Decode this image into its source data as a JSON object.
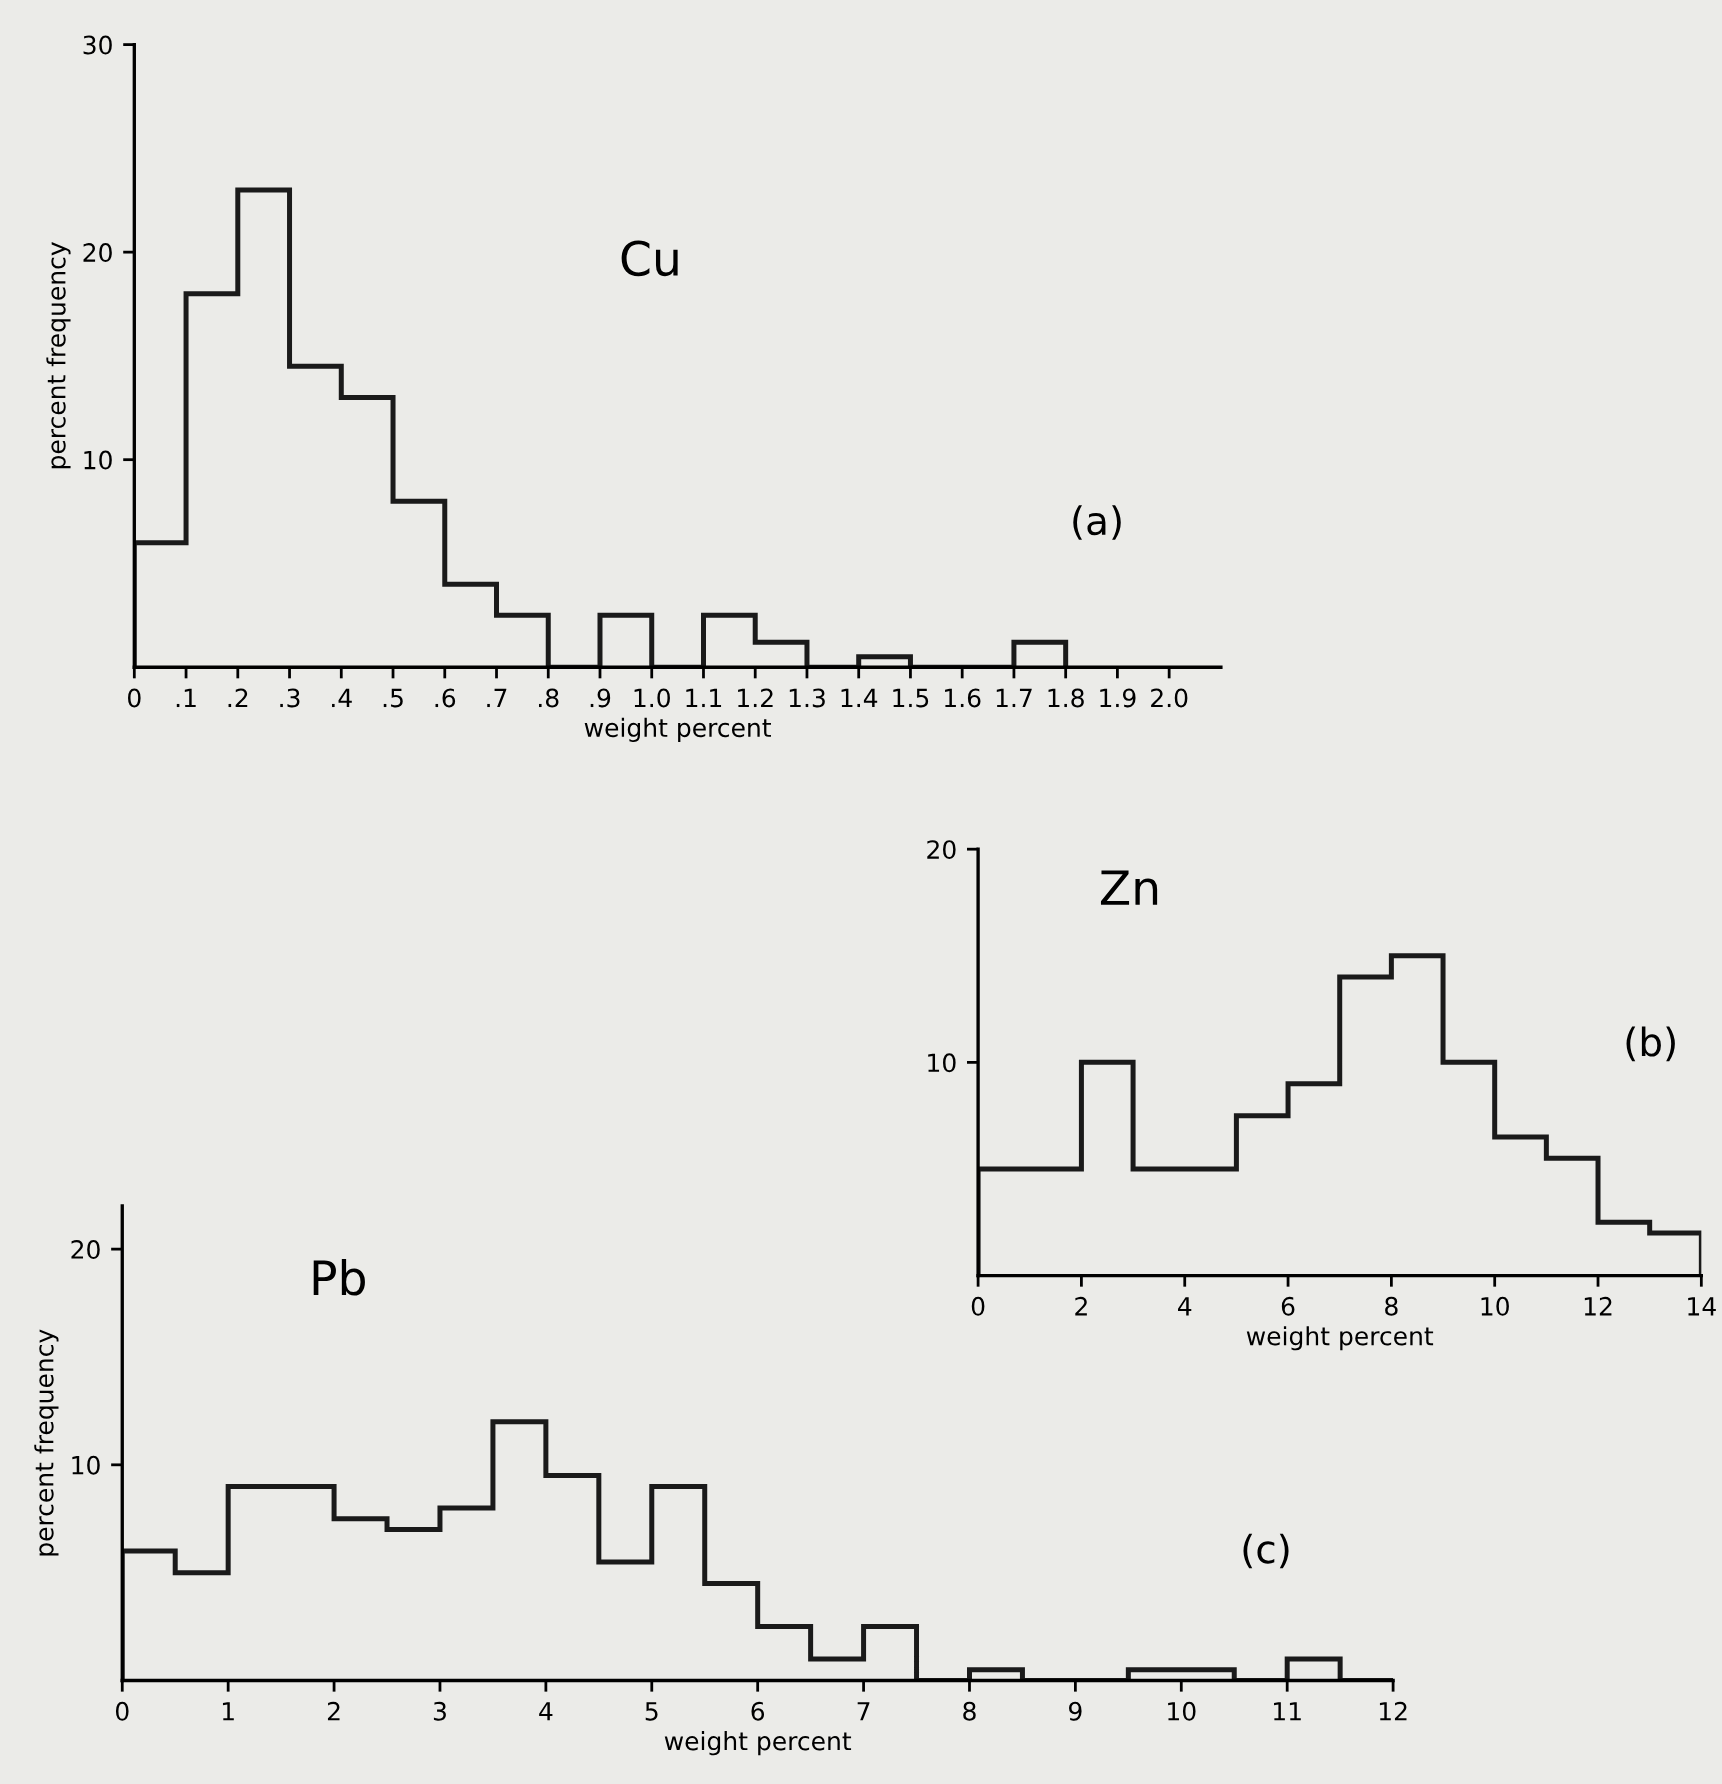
{
  "chart_data": [
    {
      "type": "histogram",
      "title": "Cu",
      "xlabel": "weight percent",
      "ylabel": "percent frequency",
      "annotations": [
        "(a)"
      ],
      "bins": [
        0,
        0.1,
        0.2,
        0.3,
        0.4,
        0.5,
        0.6,
        0.7,
        0.8,
        0.9,
        1.0,
        1.1,
        1.2,
        1.3,
        1.4,
        1.5,
        1.6,
        1.7,
        1.8
      ],
      "values": [
        6,
        18,
        23,
        14.5,
        13,
        8,
        4,
        2.5,
        0,
        2.5,
        0,
        2.5,
        1.2,
        0,
        0.5,
        0,
        0,
        1.2
      ],
      "color": "#1a1a1a",
      "xlim": [
        0,
        2.1
      ],
      "ylim": [
        0,
        30
      ],
      "xticks": [
        0,
        {
          "value": 0.1,
          "label": ".1"
        },
        {
          "value": 0.2,
          "label": ".2"
        },
        {
          "value": 0.3,
          "label": ".3"
        },
        {
          "value": 0.4,
          "label": ".4"
        },
        {
          "value": 0.5,
          "label": ".5"
        },
        {
          "value": 0.6,
          "label": ".6"
        },
        {
          "value": 0.7,
          "label": ".7"
        },
        {
          "value": 0.8,
          "label": ".8"
        },
        {
          "value": 0.9,
          "label": ".9"
        },
        {
          "value": 1.0,
          "label": "1.0"
        },
        1.1,
        1.2,
        1.3,
        1.4,
        1.5,
        1.6,
        1.7,
        1.8,
        1.9,
        {
          "value": 2.0,
          "label": "2.0"
        }
      ],
      "yticks": [
        10,
        20,
        30
      ],
      "grid": false
    },
    {
      "type": "histogram",
      "title": "Zn",
      "xlabel": "weight percent",
      "annotations": [
        "(b)"
      ],
      "bins": [
        0,
        1,
        2,
        3,
        4,
        5,
        6,
        7,
        8,
        9,
        10,
        11,
        12,
        13,
        14
      ],
      "values": [
        5,
        5,
        10,
        5,
        5,
        7.5,
        9,
        14,
        15,
        10,
        6.5,
        5.5,
        2.5,
        2
      ],
      "color": "#1a1a1a",
      "xlim": [
        0,
        14
      ],
      "ylim": [
        0,
        20
      ],
      "xticks": [
        0,
        2,
        4,
        6,
        8,
        10,
        12,
        14
      ],
      "yticks": [
        10,
        20
      ],
      "grid": false
    },
    {
      "type": "histogram",
      "title": "Pb",
      "xlabel": "weight percent",
      "ylabel": "percent frequency",
      "annotations": [
        "(c)"
      ],
      "bins": [
        0,
        0.5,
        1,
        1.5,
        2,
        2.5,
        3,
        3.5,
        4,
        4.5,
        5,
        5.5,
        6,
        6.5,
        7,
        7.5,
        8,
        8.5,
        9,
        9.5,
        10,
        10.5,
        11,
        11.5,
        12
      ],
      "values": [
        6,
        5,
        9,
        9,
        7.5,
        7,
        8,
        12,
        9.5,
        5.5,
        9,
        4.5,
        2.5,
        1,
        2.5,
        0,
        0.5,
        0,
        0,
        0.5,
        0.5,
        0,
        1,
        0
      ],
      "color": "#1a1a1a",
      "xlim": [
        0,
        12
      ],
      "ylim": [
        0,
        22
      ],
      "xticks": [
        0,
        1,
        2,
        3,
        4,
        5,
        6,
        7,
        8,
        9,
        10,
        11,
        12
      ],
      "yticks": [
        10,
        20
      ],
      "grid": false
    }
  ]
}
